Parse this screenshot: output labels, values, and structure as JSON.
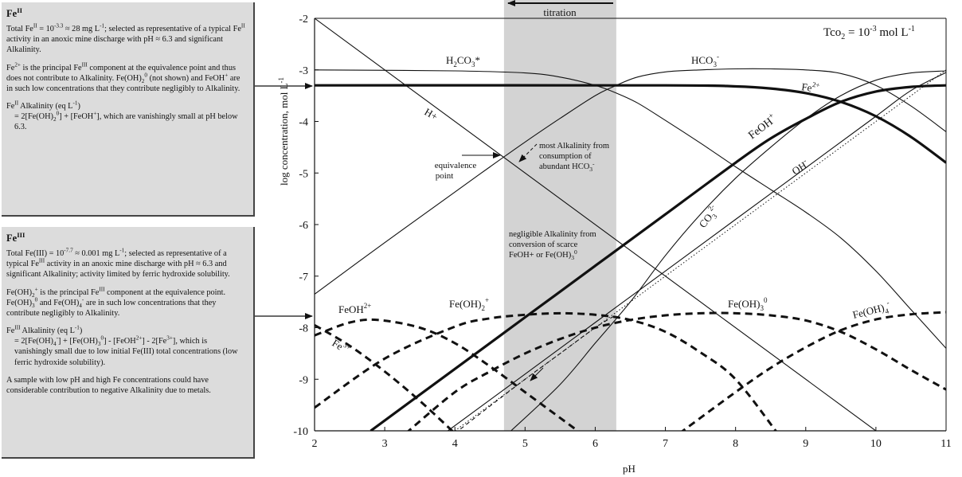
{
  "panels": {
    "fe2": {
      "title": "Fe^II",
      "paragraphs": [
        "Total Fe^II = 10^-3.3 ≈ 28 mg L^-1; selected as representative of a typical Fe^II activity in an anoxic mine discharge with pH ≈ 6.3 and significant Alkalinity.",
        "Fe^2+ is the principal Fe^III component at the equivalence point and thus does not contribute to Alkalinity. Fe(OH)_2^0 (not shown) and FeOH^+ are in such low concentrations that they contribute negligibly to Alkalinity.",
        "Fe^II Alkalinity (eq L^-1)",
        "= 2[Fe(OH)_2^0] + [FeOH^+], which are vanishingly small at pH below 6.3."
      ]
    },
    "fe3": {
      "title": "Fe^III",
      "paragraphs": [
        "Total Fe(III) = 10^-7.7 ≈ 0.001 mg L^-1; selected as representative of a typical Fe^III activity in an anoxic mine discharge with pH ≈ 6.3 and significant Alkalinity; activity limited by ferric hydroxide solubility.",
        "Fe(OH)_2^+ is the principal Fe^III component at the equivalence point. Fe(OH)_3^0 and Fe(OH)_4^- are in such low concentrations that they contribute negligibly to Alkalinity.",
        "Fe^III Alkalinity (eq L^-1)",
        "= 2[Fe(OH)_4^-] + [Fe(OH)_3^0] - [FeOH^2+] - 2[Fe^3+], which is vanishingly small due to low initial Fe(III) total concentrations (low ferric hydroxide solubility).",
        "A sample with low pH and high Fe concentrations could have considerable contribution to negative Alkalinity due to metals."
      ]
    }
  },
  "chart_data": {
    "type": "line",
    "xlabel": "pH",
    "ylabel": "log concentration, mol L^-1",
    "xlim": [
      2,
      11
    ],
    "ylim": [
      -10,
      -2
    ],
    "xticks": [
      2,
      3,
      4,
      5,
      6,
      7,
      8,
      9,
      10,
      11
    ],
    "yticks": [
      -2,
      -3,
      -4,
      -5,
      -6,
      -7,
      -8,
      -9,
      -10
    ],
    "grid": false,
    "top_annotation": "Alkalinity titration",
    "shaded_band": {
      "x_start": 4.7,
      "x_end": 6.3
    },
    "series": [
      {
        "name": "H2CO3*",
        "style": "thin",
        "x": [
          2,
          4,
          5,
          5.5,
          6,
          6.3,
          6.6,
          7,
          7.5,
          8,
          8.5,
          9,
          9.5,
          10,
          10.5,
          11
        ],
        "y": [
          -3,
          -3.02,
          -3.06,
          -3.14,
          -3.3,
          -3.45,
          -3.64,
          -3.98,
          -4.42,
          -4.88,
          -5.32,
          -5.76,
          -6.26,
          -6.9,
          -7.65,
          -8.4
        ]
      },
      {
        "name": "HCO3-",
        "style": "thin",
        "x": [
          2,
          3,
          4,
          4.5,
          5,
          5.5,
          6,
          6.3,
          6.6,
          7,
          7.5,
          8,
          8.5,
          9,
          9.5,
          10,
          10.5,
          11
        ],
        "y": [
          -7.35,
          -6.35,
          -5.37,
          -4.88,
          -4.4,
          -3.94,
          -3.5,
          -3.3,
          -3.14,
          -3.04,
          -3.0,
          -2.98,
          -2.98,
          -3.0,
          -3.07,
          -3.3,
          -3.7,
          -4.2
        ]
      },
      {
        "name": "CO3 2-",
        "style": "thin",
        "x": [
          4.8,
          5.5,
          6,
          6.5,
          7,
          7.5,
          8,
          8.5,
          9,
          9.5,
          10,
          10.5,
          11
        ],
        "y": [
          -10,
          -9.1,
          -8.3,
          -7.5,
          -6.6,
          -5.8,
          -5.1,
          -4.5,
          -3.95,
          -3.5,
          -3.2,
          -3.06,
          -3.02
        ]
      },
      {
        "name": "H+",
        "style": "thin",
        "x": [
          2,
          11
        ],
        "y": [
          -2,
          -11
        ]
      },
      {
        "name": "OH-",
        "style": "dotted",
        "x": [
          4,
          11
        ],
        "y": [
          -10,
          -3
        ]
      },
      {
        "name": "Fe2+",
        "style": "thick",
        "x": [
          2,
          7,
          8,
          8.5,
          9,
          9.5,
          10,
          10.5,
          11
        ],
        "y": [
          -3.3,
          -3.3,
          -3.32,
          -3.36,
          -3.45,
          -3.62,
          -3.9,
          -4.3,
          -4.8
        ]
      },
      {
        "name": "FeOH+",
        "style": "thick",
        "x": [
          2.8,
          4,
          5,
          6,
          7,
          8,
          8.5,
          9,
          9.5,
          10,
          10.5,
          11
        ],
        "y": [
          -10,
          -8.8,
          -7.8,
          -6.8,
          -5.8,
          -4.8,
          -4.33,
          -3.95,
          -3.62,
          -3.42,
          -3.33,
          -3.3
        ]
      },
      {
        "name": "Fe(OH)3 0 (Fe II)",
        "style": "thin",
        "x": [
          3.9,
          5,
          6,
          7,
          8,
          9,
          10,
          10.5,
          11
        ],
        "y": [
          -10,
          -8.9,
          -7.9,
          -6.9,
          -5.9,
          -4.9,
          -3.9,
          -3.4,
          -3.05
        ]
      },
      {
        "name": "Fe3+",
        "style": "dashed-thick",
        "x": [
          2,
          2.5,
          3,
          3.5,
          4
        ],
        "y": [
          -7.95,
          -8.35,
          -8.85,
          -9.42,
          -10.05
        ]
      },
      {
        "name": "FeOH2+",
        "style": "dashed-thick",
        "x": [
          2,
          2.5,
          2.9,
          3.5,
          4,
          4.5,
          5,
          5.5,
          5.8
        ],
        "y": [
          -8.15,
          -7.9,
          -7.85,
          -8.0,
          -8.3,
          -8.75,
          -9.25,
          -9.75,
          -10.05
        ]
      },
      {
        "name": "Fe(OH)2+",
        "style": "dashed-thick",
        "x": [
          2,
          3,
          4,
          4.5,
          5,
          5.5,
          6,
          6.5,
          7,
          7.5,
          8,
          8.6
        ],
        "y": [
          -9.55,
          -8.6,
          -7.98,
          -7.82,
          -7.75,
          -7.72,
          -7.75,
          -7.85,
          -8.08,
          -8.48,
          -9.0,
          -10.05
        ]
      },
      {
        "name": "Fe(OH)3 0",
        "style": "dashed-thick",
        "x": [
          3.3,
          4,
          4.5,
          5,
          5.5,
          6,
          6.5,
          7,
          7.5,
          8,
          8.5,
          9,
          9.5,
          10,
          10.5,
          11
        ],
        "y": [
          -10.05,
          -9.25,
          -8.85,
          -8.5,
          -8.22,
          -8.0,
          -7.85,
          -7.76,
          -7.72,
          -7.72,
          -7.76,
          -7.86,
          -8.08,
          -8.42,
          -8.82,
          -9.2
        ]
      },
      {
        "name": "Fe(OH)4-",
        "style": "dashed-thick",
        "x": [
          7.2,
          8,
          8.5,
          9,
          9.5,
          10,
          10.5,
          11
        ],
        "y": [
          -10.05,
          -9.25,
          -8.78,
          -8.38,
          -8.05,
          -7.84,
          -7.74,
          -7.7
        ]
      },
      {
        "name": "Fe(OH)2+ (Fe III) tail",
        "style": "dashed-thin",
        "x": [
          4,
          4.5,
          5,
          5.5,
          6,
          6.3
        ],
        "y": [
          -10.05,
          -9.52,
          -9.0,
          -8.5,
          -8.0,
          -7.75
        ]
      }
    ],
    "annotations": [
      "Tco2 = 10^-3 mol L^-1",
      "equivalence point",
      "most Alkalinity from consumption of abundant HCO3-",
      "negligible Alkalinity from conversion of scarce FeOH+ or Fe(OH)3 0"
    ]
  }
}
